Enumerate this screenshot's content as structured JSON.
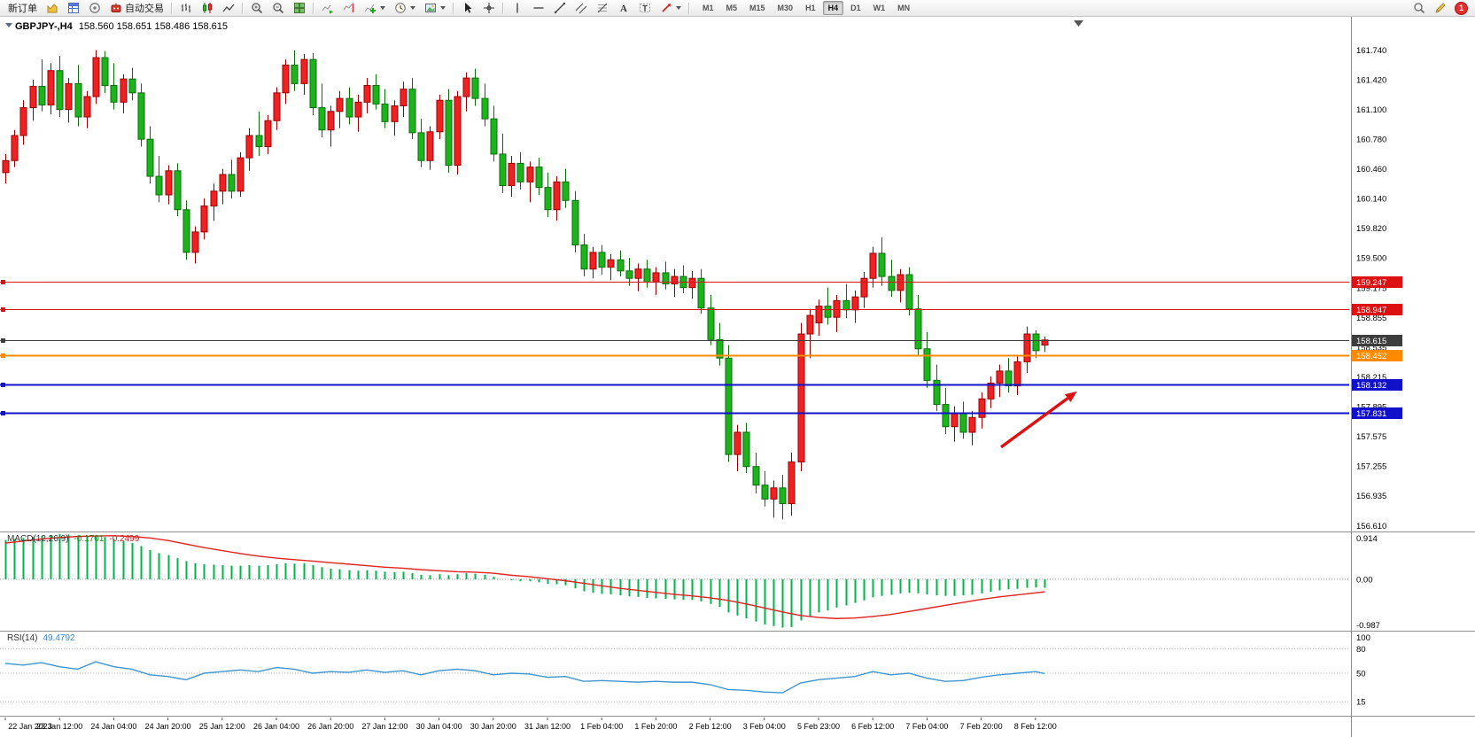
{
  "toolbar": {
    "new_order_label": "新订单",
    "autotrading_label": "自动交易",
    "timeframes": [
      "M1",
      "M5",
      "M15",
      "M30",
      "H1",
      "H4",
      "D1",
      "W1",
      "MN"
    ],
    "active_timeframe": "H4",
    "notification_count": "1"
  },
  "chart": {
    "symbol_title": "GBPJPY-,H4",
    "ohlc": "158.560 158.651 158.486 158.615",
    "colors": {
      "up": "#ee2222",
      "up_edge": "#990000",
      "down": "#1db31d",
      "down_edge": "#0b6e0b"
    },
    "price_scale": [
      "161.740",
      "161.420",
      "161.100",
      "160.780",
      "160.460",
      "160.140",
      "159.820",
      "159.500",
      "159.175",
      "158.855",
      "158.535",
      "158.215",
      "157.895",
      "157.575",
      "157.255",
      "156.935",
      "156.610"
    ],
    "lines": [
      {
        "name": "resistance-1",
        "price": 159.247,
        "label": "159.247",
        "color": "#dd1111",
        "width": 1
      },
      {
        "name": "resistance-2",
        "price": 158.947,
        "label": "158.947",
        "color": "#dd1111",
        "width": 1
      },
      {
        "name": "current-price",
        "price": 158.615,
        "label": "158.615",
        "color": "#3d3d3d",
        "width": 1
      },
      {
        "name": "pivot-orange",
        "price": 158.452,
        "label": "158.452",
        "color": "#ff8a00",
        "width": 2
      },
      {
        "name": "support-1",
        "price": 158.132,
        "label": "158.132",
        "color": "#1111cc",
        "width": 2
      },
      {
        "name": "support-2",
        "price": 157.831,
        "label": "157.831",
        "color": "#1111cc",
        "width": 2
      }
    ],
    "candles": [
      [
        160.42,
        160.62,
        160.3,
        160.55
      ],
      [
        160.55,
        160.88,
        160.48,
        160.82
      ],
      [
        160.82,
        161.2,
        160.72,
        161.12
      ],
      [
        161.12,
        161.42,
        160.98,
        161.35
      ],
      [
        161.35,
        161.64,
        161.08,
        161.15
      ],
      [
        161.15,
        161.6,
        161.05,
        161.52
      ],
      [
        161.52,
        161.68,
        161.02,
        161.1
      ],
      [
        161.1,
        161.44,
        160.96,
        161.38
      ],
      [
        161.38,
        161.58,
        160.92,
        161.02
      ],
      [
        161.02,
        161.3,
        160.9,
        161.24
      ],
      [
        161.24,
        161.74,
        161.16,
        161.66
      ],
      [
        161.66,
        161.73,
        161.28,
        161.36
      ],
      [
        161.36,
        161.6,
        161.1,
        161.18
      ],
      [
        161.18,
        161.48,
        161.06,
        161.43
      ],
      [
        161.43,
        161.55,
        161.2,
        161.28
      ],
      [
        161.28,
        161.38,
        160.7,
        160.78
      ],
      [
        160.78,
        160.92,
        160.3,
        160.38
      ],
      [
        160.38,
        160.6,
        160.1,
        160.18
      ],
      [
        160.18,
        160.5,
        160.08,
        160.44
      ],
      [
        160.44,
        160.52,
        159.95,
        160.02
      ],
      [
        160.02,
        160.12,
        159.48,
        159.56
      ],
      [
        159.56,
        159.84,
        159.44,
        159.78
      ],
      [
        159.78,
        160.14,
        159.7,
        160.06
      ],
      [
        160.06,
        160.3,
        159.9,
        160.22
      ],
      [
        160.22,
        160.46,
        160.08,
        160.4
      ],
      [
        160.4,
        160.56,
        160.14,
        160.22
      ],
      [
        160.22,
        160.64,
        160.16,
        160.58
      ],
      [
        160.58,
        160.9,
        160.44,
        160.82
      ],
      [
        160.82,
        161.08,
        160.6,
        160.7
      ],
      [
        160.7,
        161.04,
        160.62,
        160.98
      ],
      [
        160.98,
        161.34,
        160.88,
        161.28
      ],
      [
        161.28,
        161.64,
        161.16,
        161.58
      ],
      [
        161.58,
        161.74,
        161.3,
        161.38
      ],
      [
        161.38,
        161.7,
        161.26,
        161.64
      ],
      [
        161.64,
        161.71,
        161.04,
        161.12
      ],
      [
        161.12,
        161.38,
        160.8,
        160.88
      ],
      [
        160.88,
        161.14,
        160.7,
        161.08
      ],
      [
        161.08,
        161.3,
        160.9,
        161.22
      ],
      [
        161.22,
        161.34,
        160.94,
        161.02
      ],
      [
        161.02,
        161.26,
        160.86,
        161.18
      ],
      [
        161.18,
        161.44,
        161.06,
        161.36
      ],
      [
        161.36,
        161.48,
        161.1,
        161.16
      ],
      [
        161.16,
        161.32,
        160.9,
        160.97
      ],
      [
        160.97,
        161.2,
        160.82,
        161.14
      ],
      [
        161.14,
        161.4,
        161.02,
        161.32
      ],
      [
        161.32,
        161.44,
        160.78,
        160.85
      ],
      [
        160.85,
        161.0,
        160.48,
        160.55
      ],
      [
        160.55,
        160.92,
        160.45,
        160.86
      ],
      [
        160.86,
        161.26,
        160.78,
        161.2
      ],
      [
        161.2,
        161.32,
        160.42,
        160.5
      ],
      [
        160.5,
        161.3,
        160.4,
        161.24
      ],
      [
        161.24,
        161.5,
        161.08,
        161.44
      ],
      [
        161.44,
        161.54,
        161.14,
        161.22
      ],
      [
        161.22,
        161.38,
        160.92,
        161.0
      ],
      [
        161.0,
        161.14,
        160.54,
        160.62
      ],
      [
        160.62,
        160.84,
        160.2,
        160.28
      ],
      [
        160.28,
        160.6,
        160.16,
        160.52
      ],
      [
        160.52,
        160.64,
        160.24,
        160.32
      ],
      [
        160.32,
        160.54,
        160.1,
        160.48
      ],
      [
        160.48,
        160.58,
        160.18,
        160.26
      ],
      [
        160.26,
        160.42,
        159.94,
        160.02
      ],
      [
        160.02,
        160.38,
        159.9,
        160.32
      ],
      [
        160.32,
        160.46,
        160.04,
        160.12
      ],
      [
        160.12,
        160.22,
        159.56,
        159.64
      ],
      [
        159.64,
        159.76,
        159.3,
        159.38
      ],
      [
        159.38,
        159.62,
        159.28,
        159.56
      ],
      [
        159.56,
        159.64,
        159.32,
        159.4
      ],
      [
        159.4,
        159.54,
        159.26,
        159.48
      ],
      [
        159.48,
        159.58,
        159.3,
        159.36
      ],
      [
        159.36,
        159.5,
        159.2,
        159.28
      ],
      [
        159.28,
        159.44,
        159.14,
        159.38
      ],
      [
        159.38,
        159.48,
        159.18,
        159.24
      ],
      [
        159.24,
        159.4,
        159.1,
        159.34
      ],
      [
        159.34,
        159.46,
        159.16,
        159.22
      ],
      [
        159.22,
        159.38,
        159.08,
        159.3
      ],
      [
        159.3,
        159.42,
        159.12,
        159.18
      ],
      [
        159.18,
        159.36,
        159.06,
        159.28
      ],
      [
        159.28,
        159.38,
        158.9,
        158.96
      ],
      [
        158.96,
        159.1,
        158.56,
        158.62
      ],
      [
        158.62,
        158.8,
        158.34,
        158.42
      ],
      [
        158.42,
        158.56,
        157.3,
        157.38
      ],
      [
        157.38,
        157.7,
        157.2,
        157.62
      ],
      [
        157.62,
        157.72,
        157.18,
        157.25
      ],
      [
        157.25,
        157.4,
        156.96,
        157.05
      ],
      [
        157.05,
        157.2,
        156.82,
        156.9
      ],
      [
        156.9,
        157.1,
        156.7,
        157.02
      ],
      [
        157.02,
        157.16,
        156.68,
        156.85
      ],
      [
        156.85,
        157.4,
        156.72,
        157.3
      ],
      [
        157.3,
        158.8,
        157.2,
        158.68
      ],
      [
        158.68,
        158.95,
        158.42,
        158.88
      ],
      [
        158.8,
        159.05,
        158.66,
        158.98
      ],
      [
        158.98,
        159.18,
        158.78,
        158.86
      ],
      [
        158.86,
        159.1,
        158.7,
        159.04
      ],
      [
        159.04,
        159.22,
        158.85,
        158.94
      ],
      [
        158.94,
        159.15,
        158.8,
        159.08
      ],
      [
        159.08,
        159.35,
        158.96,
        159.28
      ],
      [
        159.28,
        159.62,
        159.18,
        159.55
      ],
      [
        159.55,
        159.72,
        159.2,
        159.3
      ],
      [
        159.3,
        159.48,
        159.08,
        159.15
      ],
      [
        159.15,
        159.38,
        159.02,
        159.32
      ],
      [
        159.32,
        159.4,
        158.88,
        158.95
      ],
      [
        158.95,
        159.1,
        158.45,
        158.52
      ],
      [
        158.52,
        158.7,
        158.1,
        158.18
      ],
      [
        158.18,
        158.35,
        157.85,
        157.92
      ],
      [
        157.92,
        158.1,
        157.6,
        157.68
      ],
      [
        157.68,
        157.9,
        157.52,
        157.82
      ],
      [
        157.82,
        157.95,
        157.55,
        157.62
      ],
      [
        157.62,
        157.85,
        157.48,
        157.78
      ],
      [
        157.78,
        158.05,
        157.66,
        157.98
      ],
      [
        157.98,
        158.22,
        157.88,
        158.15
      ],
      [
        158.15,
        158.35,
        158.0,
        158.28
      ],
      [
        158.28,
        158.42,
        158.05,
        158.12
      ],
      [
        158.12,
        158.45,
        158.02,
        158.38
      ],
      [
        158.38,
        158.76,
        158.26,
        158.68
      ],
      [
        158.68,
        158.72,
        158.42,
        158.5
      ],
      [
        158.56,
        158.651,
        158.486,
        158.615
      ]
    ]
  },
  "macd": {
    "label": "MACD(12,26,9)",
    "value_main": "-0.1701",
    "value_signal": "-0.2499",
    "color": "#00b44b",
    "signal_color": "#e32222",
    "scale_max": 0.914,
    "scale_min": -0.987,
    "scale_labels": [
      "0.914",
      "0.00",
      "-0.987"
    ],
    "histogram": [
      0.78,
      0.8,
      0.82,
      0.84,
      0.86,
      0.88,
      0.9,
      0.89,
      0.87,
      0.85,
      0.86,
      0.84,
      0.8,
      0.76,
      0.72,
      0.66,
      0.58,
      0.52,
      0.48,
      0.42,
      0.36,
      0.32,
      0.3,
      0.29,
      0.28,
      0.27,
      0.27,
      0.28,
      0.27,
      0.28,
      0.3,
      0.32,
      0.31,
      0.32,
      0.28,
      0.24,
      0.21,
      0.2,
      0.18,
      0.17,
      0.18,
      0.17,
      0.15,
      0.14,
      0.15,
      0.12,
      0.09,
      0.08,
      0.1,
      0.08,
      0.1,
      0.12,
      0.11,
      0.09,
      0.05,
      0.0,
      -0.02,
      -0.04,
      -0.04,
      -0.06,
      -0.09,
      -0.1,
      -0.12,
      -0.18,
      -0.24,
      -0.27,
      -0.29,
      -0.3,
      -0.32,
      -0.34,
      -0.35,
      -0.37,
      -0.38,
      -0.39,
      -0.4,
      -0.41,
      -0.41,
      -0.44,
      -0.49,
      -0.55,
      -0.66,
      -0.72,
      -0.78,
      -0.84,
      -0.9,
      -0.93,
      -0.96,
      -0.95,
      -0.82,
      -0.74,
      -0.66,
      -0.62,
      -0.56,
      -0.52,
      -0.47,
      -0.42,
      -0.36,
      -0.33,
      -0.31,
      -0.28,
      -0.27,
      -0.28,
      -0.3,
      -0.32,
      -0.33,
      -0.33,
      -0.32,
      -0.31,
      -0.28,
      -0.25,
      -0.22,
      -0.2,
      -0.19,
      -0.17,
      -0.165,
      -0.1701
    ],
    "signal": [
      [
        0,
        0.72
      ],
      [
        2,
        0.76
      ],
      [
        4,
        0.8
      ],
      [
        6,
        0.83
      ],
      [
        8,
        0.85
      ],
      [
        10,
        0.86
      ],
      [
        12,
        0.865
      ],
      [
        14,
        0.85
      ],
      [
        16,
        0.82
      ],
      [
        18,
        0.77
      ],
      [
        20,
        0.7
      ],
      [
        22,
        0.63
      ],
      [
        24,
        0.57
      ],
      [
        26,
        0.51
      ],
      [
        28,
        0.46
      ],
      [
        30,
        0.42
      ],
      [
        32,
        0.39
      ],
      [
        34,
        0.36
      ],
      [
        36,
        0.33
      ],
      [
        38,
        0.3
      ],
      [
        40,
        0.27
      ],
      [
        42,
        0.24
      ],
      [
        44,
        0.22
      ],
      [
        46,
        0.19
      ],
      [
        48,
        0.17
      ],
      [
        50,
        0.15
      ],
      [
        52,
        0.14
      ],
      [
        54,
        0.12
      ],
      [
        56,
        0.08
      ],
      [
        58,
        0.05
      ],
      [
        60,
        0.01
      ],
      [
        62,
        -0.03
      ],
      [
        64,
        -0.08
      ],
      [
        66,
        -0.13
      ],
      [
        68,
        -0.18
      ],
      [
        70,
        -0.22
      ],
      [
        72,
        -0.26
      ],
      [
        74,
        -0.3
      ],
      [
        76,
        -0.33
      ],
      [
        78,
        -0.37
      ],
      [
        80,
        -0.42
      ],
      [
        82,
        -0.49
      ],
      [
        84,
        -0.57
      ],
      [
        86,
        -0.65
      ],
      [
        88,
        -0.72
      ],
      [
        90,
        -0.76
      ],
      [
        92,
        -0.78
      ],
      [
        94,
        -0.77
      ],
      [
        96,
        -0.74
      ],
      [
        98,
        -0.7
      ],
      [
        100,
        -0.64
      ],
      [
        102,
        -0.58
      ],
      [
        104,
        -0.52
      ],
      [
        106,
        -0.46
      ],
      [
        108,
        -0.4
      ],
      [
        110,
        -0.35
      ],
      [
        112,
        -0.31
      ],
      [
        114,
        -0.27
      ],
      [
        115,
        -0.2499
      ]
    ]
  },
  "rsi": {
    "label": "RSI(14)",
    "value": "49.4792",
    "color": "#3f95d0",
    "levels": [
      80,
      50,
      15
    ],
    "scale_labels": [
      "100",
      "80",
      "50",
      "15"
    ],
    "line": [
      [
        0,
        62
      ],
      [
        2,
        60
      ],
      [
        4,
        63
      ],
      [
        6,
        58
      ],
      [
        8,
        55
      ],
      [
        10,
        64
      ],
      [
        12,
        58
      ],
      [
        14,
        55
      ],
      [
        16,
        48
      ],
      [
        18,
        46
      ],
      [
        20,
        42
      ],
      [
        22,
        50
      ],
      [
        24,
        52
      ],
      [
        26,
        54
      ],
      [
        28,
        52
      ],
      [
        30,
        57
      ],
      [
        32,
        55
      ],
      [
        34,
        50
      ],
      [
        36,
        52
      ],
      [
        38,
        51
      ],
      [
        40,
        54
      ],
      [
        42,
        51
      ],
      [
        44,
        53
      ],
      [
        46,
        48
      ],
      [
        48,
        53
      ],
      [
        50,
        55
      ],
      [
        52,
        53
      ],
      [
        54,
        48
      ],
      [
        56,
        50
      ],
      [
        58,
        49
      ],
      [
        60,
        45
      ],
      [
        62,
        46
      ],
      [
        64,
        40
      ],
      [
        66,
        41
      ],
      [
        68,
        40
      ],
      [
        70,
        39
      ],
      [
        72,
        40
      ],
      [
        74,
        39
      ],
      [
        76,
        39
      ],
      [
        78,
        36
      ],
      [
        80,
        30
      ],
      [
        82,
        29
      ],
      [
        84,
        27
      ],
      [
        86,
        26
      ],
      [
        88,
        38
      ],
      [
        90,
        42
      ],
      [
        92,
        44
      ],
      [
        94,
        46
      ],
      [
        96,
        52
      ],
      [
        98,
        48
      ],
      [
        100,
        50
      ],
      [
        102,
        44
      ],
      [
        104,
        40
      ],
      [
        106,
        41
      ],
      [
        108,
        45
      ],
      [
        110,
        48
      ],
      [
        112,
        50
      ],
      [
        114,
        52
      ],
      [
        115,
        49.4792
      ]
    ]
  },
  "time_axis": {
    "label_step": 6,
    "labels": [
      "22 Jan 2023",
      "23 Jan 12:00",
      "24 Jan 04:00",
      "24 Jan 20:00",
      "25 Jan 12:00",
      "26 Jan 04:00",
      "26 Jan 20:00",
      "27 Jan 12:00",
      "30 Jan 04:00",
      "30 Jan 20:00",
      "31 Jan 12:00",
      "1 Feb 04:00",
      "1 Feb 20:00",
      "2 Feb 12:00",
      "3 Feb 04:00",
      "5 Feb 23:00",
      "6 Feb 12:00",
      "7 Feb 04:00",
      "7 Feb 20:00",
      "8 Feb 12:00"
    ]
  },
  "arrow": {
    "color": "#dd1111",
    "from": {
      "bar": 110.2,
      "price": 157.46
    },
    "to": {
      "bar": 118.6,
      "price": 158.06
    }
  }
}
